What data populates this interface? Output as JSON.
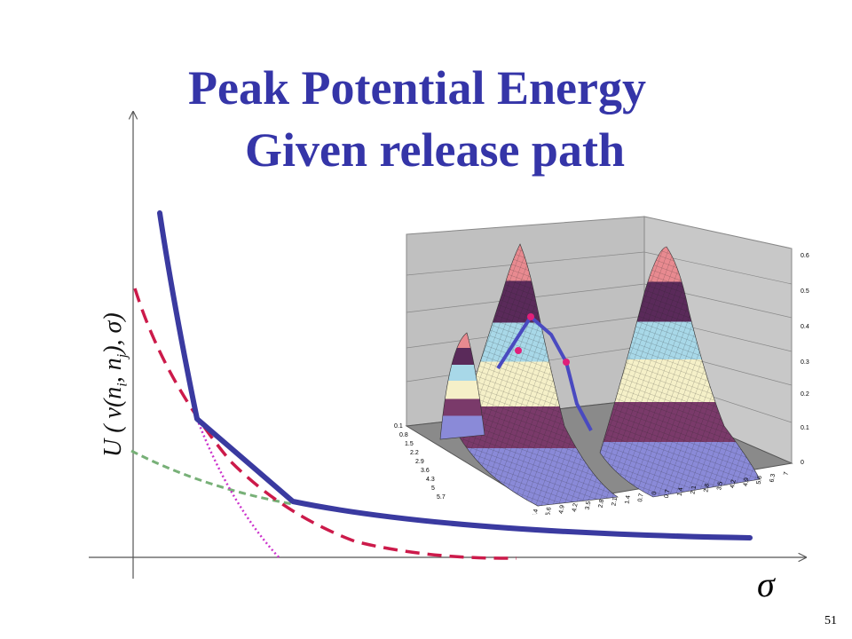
{
  "title": {
    "line1": "Peak Potential Energy",
    "line2": "Given release path"
  },
  "axes": {
    "y_label": {
      "main": "U ( v(n",
      "sub_i": "i",
      "sep": ", n",
      "sub_j": "j",
      "end": "), σ)"
    },
    "x_label": "σ"
  },
  "page_number": "51",
  "surface_plot": {
    "z_ticks": [
      "0",
      "0.1",
      "0.2",
      "0.3",
      "0.4",
      "0.5",
      "0.6"
    ],
    "left_ticks": [
      "0.1",
      "0.8",
      "1.5",
      "2.2",
      "2.9",
      "3.6",
      "4.3",
      "5",
      "5.7"
    ],
    "bottom_ticks": [
      "6.4",
      "5.6",
      "4.9",
      "4.2",
      "3.5",
      "2.8",
      "2.1",
      "1.4",
      "0.7",
      "0",
      "0.7",
      "1.4",
      "2.1",
      "2.8",
      "3.5",
      "4.2",
      "4.9",
      "5.6",
      "6.3",
      "7"
    ]
  },
  "colors": {
    "title": "#3535a8",
    "thick_curve": "#3a3aa0",
    "dashed_curve": "#cc1a4a",
    "dotted_curve": "#cc33cc",
    "green_dashed": "#77b077",
    "path_marker": "#e0207a"
  }
}
